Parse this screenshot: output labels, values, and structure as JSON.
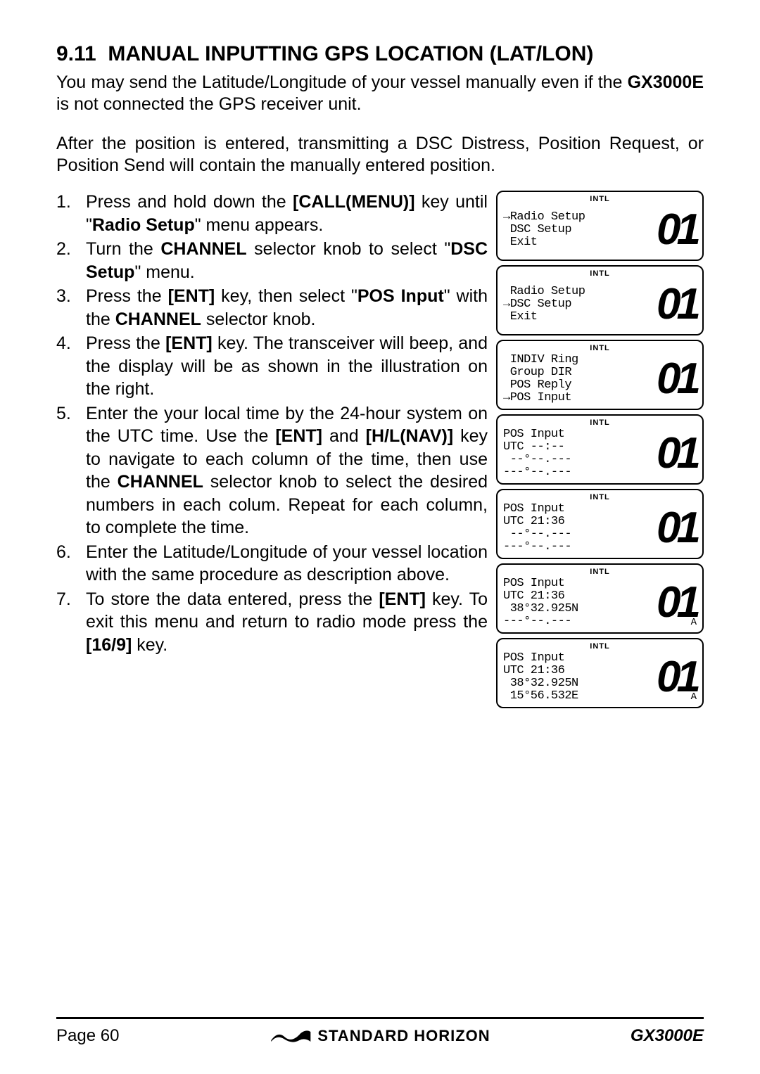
{
  "section": {
    "number": "9.11",
    "title": "MANUAL INPUTTING GPS LOCATION (LAT/LON)"
  },
  "intro": {
    "p1_part1": "You may send the Latitude/Longitude of your vessel manually even if the ",
    "p1_bold": "GX3000E",
    "p1_part2": " is not connected the GPS receiver unit.",
    "p2": "After the position is entered, transmitting a DSC Distress, Position Request, or Position Send will contain the manually entered position."
  },
  "steps": [
    {
      "num": "1.",
      "parts": [
        {
          "t": "Press and hold down the ",
          "b": false
        },
        {
          "t": "[CALL(MENU)]",
          "b": true
        },
        {
          "t": " key until \"",
          "b": false
        },
        {
          "t": "Radio Setup",
          "b": true
        },
        {
          "t": "\" menu appears.",
          "b": false
        }
      ]
    },
    {
      "num": "2.",
      "parts": [
        {
          "t": "Turn the ",
          "b": false
        },
        {
          "t": "CHANNEL",
          "b": true
        },
        {
          "t": " selector knob to select \"",
          "b": false
        },
        {
          "t": "DSC Setup",
          "b": true
        },
        {
          "t": "\" menu.",
          "b": false
        }
      ]
    },
    {
      "num": "3.",
      "parts": [
        {
          "t": "Press the ",
          "b": false
        },
        {
          "t": "[ENT]",
          "b": true
        },
        {
          "t": " key, then select \"",
          "b": false
        },
        {
          "t": "POS Input",
          "b": true
        },
        {
          "t": "\" with the ",
          "b": false
        },
        {
          "t": "CHANNEL",
          "b": true
        },
        {
          "t": " selector knob.",
          "b": false
        }
      ]
    },
    {
      "num": "4.",
      "parts": [
        {
          "t": "Press the ",
          "b": false
        },
        {
          "t": "[ENT]",
          "b": true
        },
        {
          "t": " key. The transceiver will beep, and the display will be as shown in the illustration on the right.",
          "b": false
        }
      ]
    },
    {
      "num": "5.",
      "parts": [
        {
          "t": "Enter the your local time by the 24-hour system on the UTC time. Use the ",
          "b": false
        },
        {
          "t": "[ENT]",
          "b": true
        },
        {
          "t": " and ",
          "b": false
        },
        {
          "t": "[H/L(NAV)]",
          "b": true
        },
        {
          "t": " key to navigate to each column of the time, then use the ",
          "b": false
        },
        {
          "t": "CHANNEL",
          "b": true
        },
        {
          "t": " selector knob to select the desired numbers in each colum. Repeat for each column, to complete the time.",
          "b": false
        }
      ]
    },
    {
      "num": "6.",
      "parts": [
        {
          "t": "Enter the Latitude/Longitude of your vessel location with the same procedure as description above.",
          "b": false
        }
      ]
    },
    {
      "num": "7.",
      "parts": [
        {
          "t": "To store the data entered, press the ",
          "b": false
        },
        {
          "t": "[ENT]",
          "b": true
        },
        {
          "t": " key. To exit this menu and return to radio mode press the ",
          "b": false
        },
        {
          "t": "[16/9]",
          "b": true
        },
        {
          "t": " key.",
          "b": false
        }
      ]
    }
  ],
  "screens": [
    {
      "header": "INTL",
      "text": "→Radio Setup\n DSC Setup\n Exit",
      "digit": "01",
      "sub": ""
    },
    {
      "header": "INTL",
      "text": " Radio Setup\n→DSC Setup\n Exit",
      "digit": "01",
      "sub": ""
    },
    {
      "header": "INTL",
      "text": " INDIV Ring\n Group DIR\n POS Reply\n→POS Input",
      "digit": "01",
      "sub": ""
    },
    {
      "header": "INTL",
      "text": "POS Input\nUTC --:--\n --°--.---\n---°--.---",
      "digit": "01",
      "sub": ""
    },
    {
      "header": "INTL",
      "text": "POS Input\nUTC 21:36\n --°--.---\n---°--.---",
      "digit": "01",
      "sub": ""
    },
    {
      "header": "INTL",
      "text": "POS Input\nUTC 21:36\n 38°32.925N\n---°--.---",
      "digit": "01",
      "sub": "A"
    },
    {
      "header": "INTL",
      "text": "POS Input\nUTC 21:36\n 38°32.925N\n 15°56.532E",
      "digit": "01",
      "sub": "A"
    }
  ],
  "footer": {
    "page": "Page 60",
    "brand": "STANDARD HORIZON",
    "model": "GX3000E"
  },
  "colors": {
    "text": "#000000",
    "background": "#ffffff",
    "border": "#000000"
  }
}
